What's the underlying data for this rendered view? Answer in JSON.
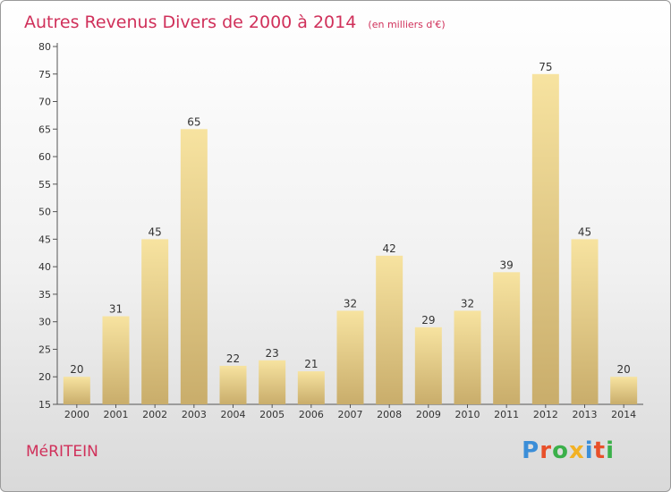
{
  "chart_data": {
    "type": "bar",
    "title": "Autres Revenus Divers de 2000 à 2014",
    "subtitle": "(en milliers d'€)",
    "xlabel": "",
    "ylabel": "",
    "categories": [
      "2000",
      "2001",
      "2002",
      "2003",
      "2004",
      "2005",
      "2006",
      "2007",
      "2008",
      "2009",
      "2010",
      "2011",
      "2012",
      "2013",
      "2014"
    ],
    "values": [
      20,
      31,
      45,
      65,
      22,
      23,
      21,
      32,
      42,
      29,
      32,
      39,
      75,
      45,
      20
    ],
    "ylim": [
      15,
      80
    ],
    "yticks": [
      15,
      20,
      25,
      30,
      35,
      40,
      45,
      50,
      55,
      60,
      65,
      70,
      75,
      80
    ],
    "grid": false,
    "legend": "none",
    "colors": {
      "bar_top": "#f7e3a0",
      "bar_bottom": "#c9ad6b",
      "title": "#d0305a"
    }
  },
  "footer": {
    "town": "MéRITEIN",
    "brand": "Proxiti",
    "brand_colors": [
      "#3b8ed8",
      "#e8502a",
      "#3bb04a",
      "#f2b124",
      "#3b8ed8",
      "#e8502a",
      "#3bb04a"
    ]
  }
}
